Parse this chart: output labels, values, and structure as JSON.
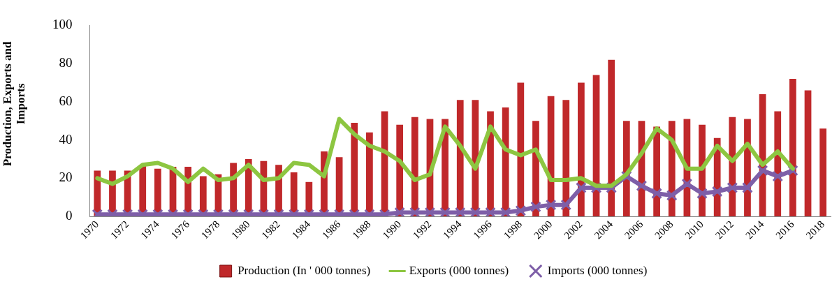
{
  "chart_data": {
    "type": "bar",
    "ylabel": "Production, Exports and Imports",
    "categories": [
      "1970",
      null,
      "1972",
      null,
      "1974",
      null,
      "1976",
      null,
      "1978",
      null,
      "1980",
      null,
      "1982",
      null,
      "1984",
      null,
      "1986",
      null,
      "1988",
      null,
      "1990",
      null,
      "1992",
      null,
      "1994",
      null,
      "1996",
      null,
      "1998",
      null,
      "2000",
      null,
      "2002",
      null,
      "2004",
      null,
      "2006",
      null,
      "2008",
      null,
      "2010",
      null,
      "2012",
      null,
      "2014",
      null,
      "2016",
      null,
      "2018"
    ],
    "series": [
      {
        "name": "Production (In ' 000 tonnes)",
        "color": "#c0282a",
        "values": [
          24,
          24,
          24,
          27,
          25,
          26,
          26,
          21,
          22,
          28,
          30,
          29,
          27,
          23,
          18,
          34,
          31,
          49,
          44,
          55,
          48,
          52,
          51,
          51,
          61,
          61,
          55,
          57,
          70,
          50,
          63,
          61,
          70,
          74,
          82,
          50,
          50,
          47,
          50,
          51,
          48,
          41,
          52,
          51,
          64,
          55,
          72,
          66,
          46
        ]
      },
      {
        "name": "Exports (000 tonnes)",
        "type": "line",
        "color": "#8dc641",
        "marker": "none",
        "values": [
          20,
          17,
          21,
          27,
          28,
          25,
          18,
          25,
          19,
          20,
          27,
          19,
          20,
          28,
          27,
          21,
          51,
          43,
          37,
          34,
          29,
          19,
          22,
          47,
          37,
          25,
          47,
          35,
          32,
          35,
          19,
          19,
          20,
          16,
          16,
          22,
          33,
          46,
          40,
          25,
          25,
          37,
          29,
          38,
          27,
          34,
          25,
          null,
          null
        ]
      },
      {
        "name": "Imports (000 tonnes)",
        "type": "line",
        "color": "#7e5fa8",
        "marker": "cross",
        "values": [
          1,
          1,
          1,
          1,
          1,
          1,
          1,
          1,
          1,
          1,
          1,
          1,
          1,
          1,
          1,
          1,
          1,
          1,
          1,
          1,
          2,
          2,
          2,
          2,
          2,
          2,
          2,
          2,
          3,
          5,
          6,
          6,
          15,
          15,
          15,
          21,
          16,
          12,
          11,
          17,
          12,
          13,
          15,
          15,
          24,
          21,
          24,
          null,
          null
        ]
      }
    ],
    "ylim": [
      0,
      100
    ],
    "yticks": [
      0,
      20,
      40,
      60,
      80,
      100
    ],
    "grid": false,
    "legend": "bottom"
  }
}
